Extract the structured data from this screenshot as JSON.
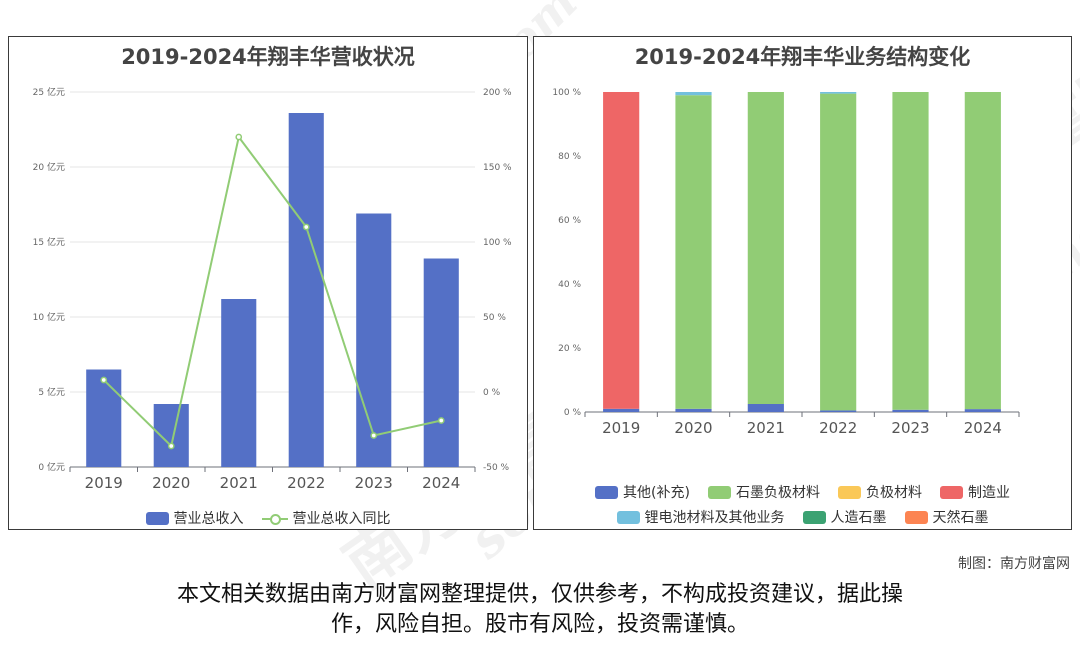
{
  "left_chart": {
    "title": "2019-2024年翔丰华营收状况",
    "legend": {
      "bar": "营业总收入",
      "line": "营业总收入同比"
    }
  },
  "right_chart": {
    "title": "2019-2024年翔丰华业务结构变化",
    "legend": [
      "其他(补充)",
      "石墨负极材料",
      "负极材料",
      "制造业",
      "锂电池材料及其他业务",
      "人造石墨",
      "天然石墨"
    ]
  },
  "footer": {
    "credit": "制图：南方财富网",
    "disclaimer_line1": "本文相关数据由南方财富网整理提供，仅供参考，不构成投资建议，据此操",
    "disclaimer_line2": "作，风险自担。股市有风险，投资需谨慎。"
  },
  "watermark": {
    "brand": "南方财富网",
    "domain": "southmoney.com"
  },
  "chart_data": [
    {
      "type": "bar",
      "title": "2019-2024年翔丰华营收状况",
      "categories": [
        "2019",
        "2020",
        "2021",
        "2022",
        "2023",
        "2024"
      ],
      "series": [
        {
          "name": "营业总收入",
          "type": "bar",
          "axis": "left",
          "values": [
            6.5,
            4.2,
            11.2,
            23.6,
            16.9,
            13.9
          ],
          "color": "#5470c6"
        },
        {
          "name": "营业总收入同比",
          "type": "line",
          "axis": "right",
          "values": [
            8,
            -36,
            170,
            110,
            -29,
            -19
          ],
          "color": "#91cc75"
        }
      ],
      "y_left": {
        "min": 0,
        "max": 25,
        "ticks": [
          0,
          5,
          10,
          15,
          20,
          25
        ],
        "unit": " 亿元"
      },
      "y_right": {
        "min": -50,
        "max": 200,
        "ticks": [
          -50,
          0,
          50,
          100,
          150,
          200
        ],
        "unit": " %"
      },
      "grid": true,
      "legend_position": "bottom"
    },
    {
      "type": "bar",
      "stacked": true,
      "title": "2019-2024年翔丰华业务结构变化",
      "categories": [
        "2019",
        "2020",
        "2021",
        "2022",
        "2023",
        "2024"
      ],
      "series": [
        {
          "name": "其他(补充)",
          "values": [
            1.0,
            1.0,
            2.5,
            0.5,
            0.7,
            0.9
          ],
          "color": "#5470c6"
        },
        {
          "name": "石墨负极材料",
          "values": [
            0,
            98.0,
            97.5,
            99.0,
            99.3,
            99.1
          ],
          "color": "#91cc75"
        },
        {
          "name": "负极材料",
          "values": [
            0,
            0,
            0,
            0,
            0,
            0
          ],
          "color": "#fac858"
        },
        {
          "name": "制造业",
          "values": [
            99.0,
            0,
            0,
            0,
            0,
            0
          ],
          "color": "#ee6666"
        },
        {
          "name": "锂电池材料及其他业务",
          "values": [
            0,
            1.0,
            0,
            0.5,
            0,
            0
          ],
          "color": "#73c0de"
        },
        {
          "name": "人造石墨",
          "values": [
            0,
            0,
            0,
            0,
            0,
            0
          ],
          "color": "#3ba272"
        },
        {
          "name": "天然石墨",
          "values": [
            0,
            0,
            0,
            0,
            0,
            0
          ],
          "color": "#fc8452"
        }
      ],
      "y": {
        "min": 0,
        "max": 100,
        "ticks": [
          0,
          20,
          40,
          60,
          80,
          100
        ],
        "unit": " %"
      },
      "grid": false,
      "legend_position": "bottom"
    }
  ]
}
